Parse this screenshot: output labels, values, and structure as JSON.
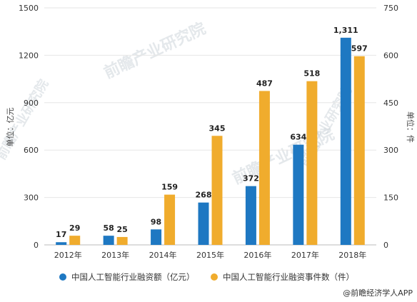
{
  "chart_data": {
    "type": "bar",
    "categories": [
      "2012年",
      "2013年",
      "2014年",
      "2015年",
      "2016年",
      "2017年",
      "2018年"
    ],
    "series": [
      {
        "name": "中国人工智能行业融资额（亿元）",
        "axis": "left",
        "color": "#1e78c2",
        "values": [
          17,
          58,
          98,
          268,
          372,
          634,
          1311
        ],
        "labels": [
          "17",
          "58",
          "98",
          "268",
          "372",
          "634",
          "1,311"
        ]
      },
      {
        "name": "中国人工智能行业融资事件数（件）",
        "axis": "right",
        "color": "#f0ac2d",
        "values": [
          29,
          25,
          159,
          345,
          487,
          518,
          597
        ],
        "labels": [
          "29",
          "25",
          "159",
          "345",
          "487",
          "518",
          "597"
        ]
      }
    ],
    "ylabel_left": "单位：亿元",
    "ylabel_right": "单位：件",
    "ylim_left": [
      0,
      1500
    ],
    "yticks_left": [
      0,
      300,
      600,
      900,
      1200,
      1500
    ],
    "ylim_right": [
      0,
      750
    ],
    "yticks_right": [
      0,
      150,
      300,
      450,
      600,
      750
    ],
    "grid": "horizontal",
    "legend_position": "bottom"
  },
  "watermark": "前瞻产业研究院",
  "credit": "@前瞻经济学人APP"
}
